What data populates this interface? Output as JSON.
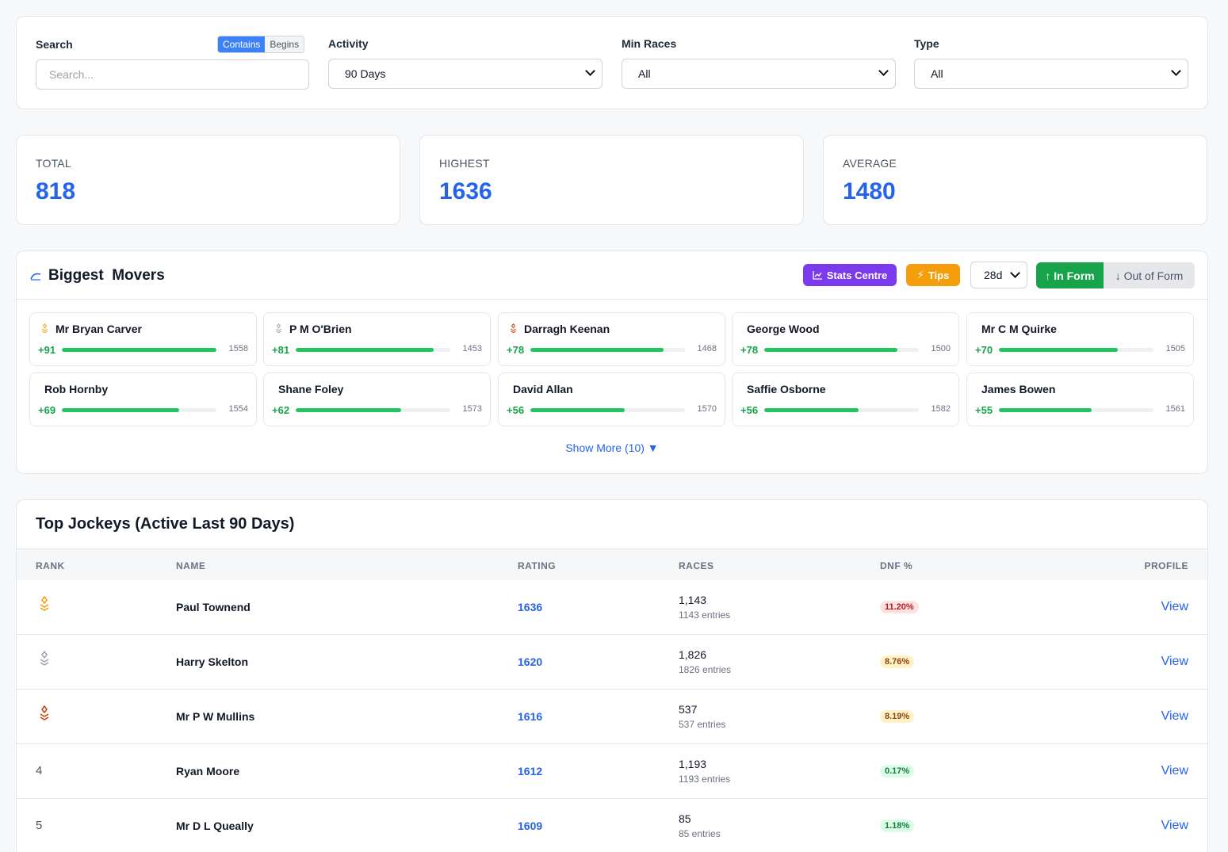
{
  "filters": {
    "search_label": "Search",
    "search_placeholder": "Search...",
    "mode_contains": "Contains",
    "mode_begins": "Begins",
    "activity_label": "Activity",
    "activity_value": "90 Days",
    "minraces_label": "Min Races",
    "minraces_value": "All",
    "type_label": "Type",
    "type_value": "All"
  },
  "stats": {
    "total_label": "TOTAL",
    "total_value": "818",
    "highest_label": "HIGHEST",
    "highest_value": "1636",
    "average_label": "AVERAGE",
    "average_value": "1480"
  },
  "movers": {
    "title": "Biggest  Movers",
    "stats_centre": "Stats Centre",
    "tips": "Tips",
    "period": "28d",
    "in_form": "↑ In Form",
    "out_of_form": "↓ Out of Form",
    "show_more": "Show More (10) ▼",
    "items": [
      {
        "name": "Mr Bryan Carver",
        "delta": "+91",
        "rating": "1558",
        "pct": 100,
        "icon": "gold-rank-icon"
      },
      {
        "name": "P M O'Brien",
        "delta": "+81",
        "rating": "1453",
        "pct": 89,
        "icon": "silver-rank-icon"
      },
      {
        "name": "Darragh Keenan",
        "delta": "+78",
        "rating": "1468",
        "pct": 86,
        "icon": "bronze-rank-icon"
      },
      {
        "name": "George Wood",
        "delta": "+78",
        "rating": "1500",
        "pct": 86,
        "icon": ""
      },
      {
        "name": "Mr C M Quirke",
        "delta": "+70",
        "rating": "1505",
        "pct": 77,
        "icon": ""
      },
      {
        "name": "Rob Hornby",
        "delta": "+69",
        "rating": "1554",
        "pct": 76,
        "icon": ""
      },
      {
        "name": "Shane Foley",
        "delta": "+62",
        "rating": "1573",
        "pct": 68,
        "icon": ""
      },
      {
        "name": "David Allan",
        "delta": "+56",
        "rating": "1570",
        "pct": 61,
        "icon": ""
      },
      {
        "name": "Saffie Osborne",
        "delta": "+56",
        "rating": "1582",
        "pct": 61,
        "icon": ""
      },
      {
        "name": "James Bowen",
        "delta": "+55",
        "rating": "1561",
        "pct": 60,
        "icon": ""
      }
    ]
  },
  "table": {
    "title": "Top Jockeys (Active Last 90 Days)",
    "headers": [
      "RANK",
      "NAME",
      "RATING",
      "RACES",
      "DNF %",
      "PROFILE"
    ],
    "rows": [
      {
        "rank": "",
        "rank_icon": "gold-rank-icon",
        "name": "Paul Townend",
        "rating": "1636",
        "races": "1,143",
        "entries": "1143 entries",
        "dnf": "11.20%",
        "dnf_level": "red",
        "view": "View"
      },
      {
        "rank": "",
        "rank_icon": "silver-rank-icon",
        "name": "Harry Skelton",
        "rating": "1620",
        "races": "1,826",
        "entries": "1826 entries",
        "dnf": "8.76%",
        "dnf_level": "yellow",
        "view": "View"
      },
      {
        "rank": "",
        "rank_icon": "bronze-rank-icon",
        "name": "Mr P W Mullins",
        "rating": "1616",
        "races": "537",
        "entries": "537 entries",
        "dnf": "8.19%",
        "dnf_level": "yellow",
        "view": "View"
      },
      {
        "rank": "4",
        "rank_icon": "",
        "name": "Ryan Moore",
        "rating": "1612",
        "races": "1,193",
        "entries": "1193 entries",
        "dnf": "0.17%",
        "dnf_level": "green",
        "view": "View"
      },
      {
        "rank": "5",
        "rank_icon": "",
        "name": "Mr D L Queally",
        "rating": "1609",
        "races": "85",
        "entries": "85 entries",
        "dnf": "1.18%",
        "dnf_level": "green",
        "view": "View"
      }
    ]
  },
  "colors": {
    "accent": "#2563eb",
    "gold": "#f59e0b",
    "silver": "#9ca3af",
    "bronze": "#c2410c",
    "positive": "#16a34a"
  }
}
